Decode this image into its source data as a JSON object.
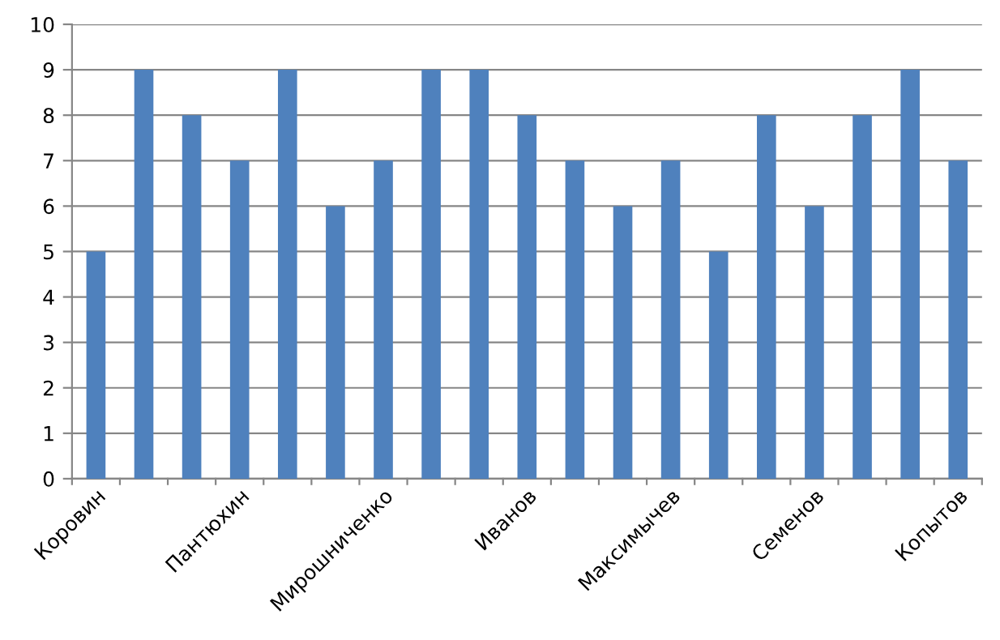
{
  "chart_data": {
    "type": "bar",
    "categories": [
      "Коровин",
      null,
      null,
      "Пантюхин",
      null,
      null,
      "Мирошниченко",
      null,
      null,
      "Иванов",
      null,
      null,
      "Максимычев",
      null,
      null,
      "Семенов",
      null,
      null,
      "Копытов"
    ],
    "values": [
      5,
      9,
      8,
      7,
      9,
      6,
      7,
      9,
      9,
      8,
      7,
      6,
      7,
      5,
      8,
      6,
      8,
      9,
      7
    ],
    "color": "#4f81bd",
    "ylim": [
      0,
      10
    ],
    "yticks": [
      0,
      1,
      2,
      3,
      4,
      5,
      6,
      7,
      8,
      9,
      10
    ],
    "grid": "y"
  }
}
